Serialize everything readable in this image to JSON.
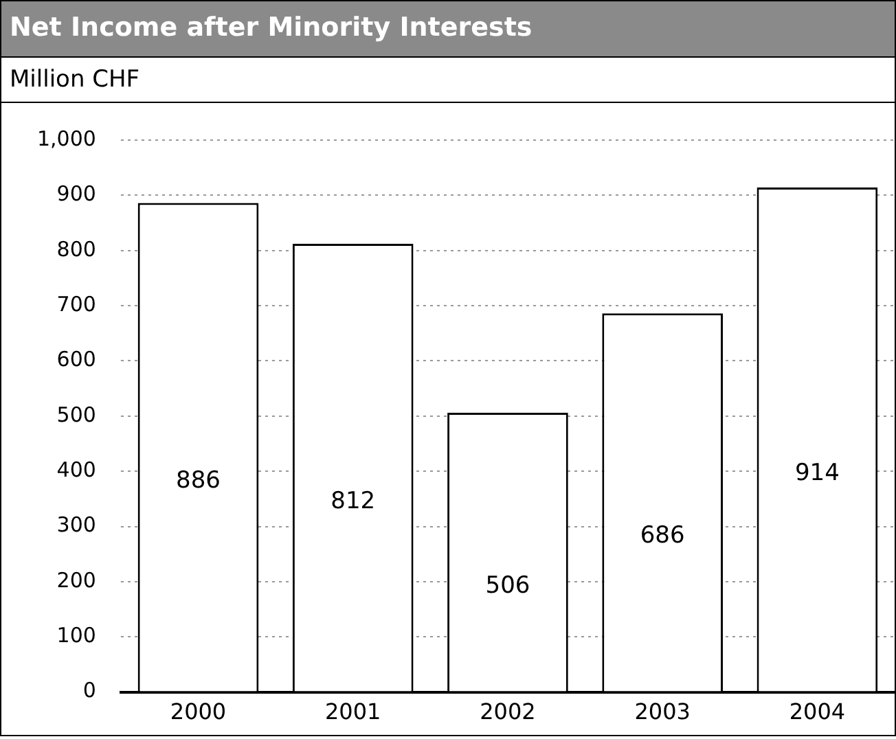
{
  "chart_data": {
    "type": "bar",
    "title": "Net Income after Minority Interests",
    "subtitle": "Million CHF",
    "categories": [
      "2000",
      "2001",
      "2002",
      "2003",
      "2004"
    ],
    "values": [
      886,
      812,
      506,
      686,
      914
    ],
    "color": "#ffffff",
    "ylim": [
      0,
      1000
    ],
    "yticks": [
      0,
      100,
      200,
      300,
      400,
      500,
      600,
      700,
      800,
      900,
      {
        "value": 1000,
        "label": "1,000"
      }
    ],
    "grid": "y",
    "data_labels": true
  }
}
